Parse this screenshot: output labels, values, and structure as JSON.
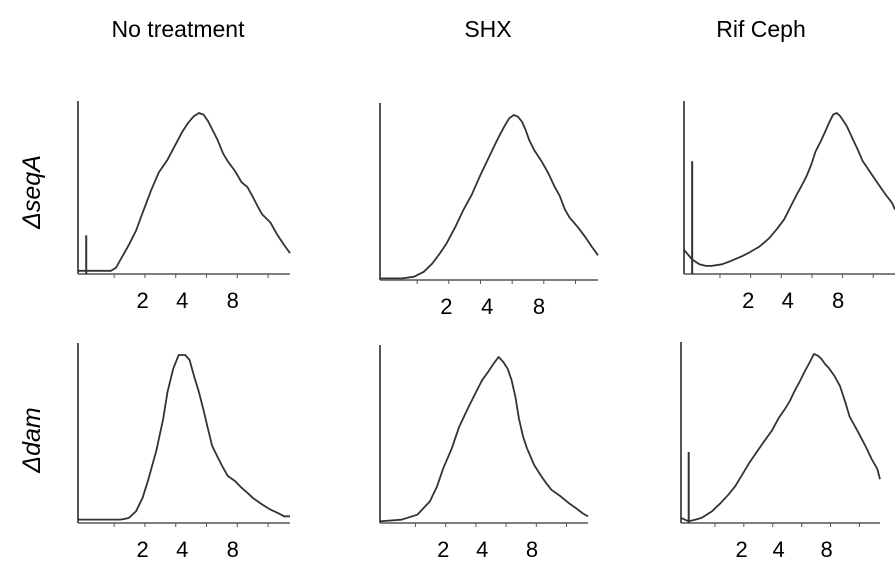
{
  "figure": {
    "columns": [
      "No treatment",
      "SHX",
      "Rif Ceph"
    ],
    "rows": [
      "ΔseqA",
      "Δdam"
    ]
  },
  "chart_data": [
    {
      "type": "area",
      "row": "ΔseqA",
      "column": "No treatment",
      "x_ticks": [
        2,
        4,
        8
      ],
      "xlim": [
        0.7,
        22
      ],
      "ylim": [
        0,
        100
      ],
      "x": [
        0.7,
        1.0,
        1.2,
        1.3,
        1.4,
        1.6,
        1.8,
        2.0,
        2.3,
        2.6,
        3.0,
        3.4,
        3.8,
        4.2,
        4.6,
        5.0,
        5.4,
        5.8,
        6.2,
        6.8,
        7.4,
        8.0,
        9.0,
        10.0,
        11.0,
        12.0,
        13.0,
        14.0,
        16.0,
        18.0,
        20.0,
        22.0
      ],
      "y": [
        2,
        2,
        2,
        4,
        9,
        18,
        27,
        38,
        52,
        63,
        71,
        80,
        88,
        94,
        98,
        100,
        99,
        95,
        90,
        83,
        75,
        70,
        64,
        57,
        54,
        48,
        42,
        37,
        32,
        24,
        18,
        13
      ],
      "spikes": [
        {
          "x": 0.8,
          "y": 24
        }
      ]
    },
    {
      "type": "area",
      "row": "ΔseqA",
      "column": "SHX",
      "x_ticks": [
        2,
        4,
        8
      ],
      "xlim": [
        0.7,
        22
      ],
      "ylim": [
        0,
        100
      ],
      "x": [
        0.7,
        1.0,
        1.2,
        1.4,
        1.6,
        1.8,
        2.0,
        2.3,
        2.6,
        3.0,
        3.4,
        3.8,
        4.2,
        4.6,
        5.0,
        5.4,
        5.8,
        6.2,
        6.6,
        7.0,
        7.4,
        8.0,
        9.0,
        10.0,
        11.0,
        12.0,
        13.0,
        14.0,
        16.0,
        18.0,
        20.0,
        22.0
      ],
      "y": [
        1,
        1,
        2,
        5,
        10,
        16,
        22,
        32,
        42,
        52,
        63,
        72,
        80,
        87,
        93,
        98,
        100,
        99,
        96,
        91,
        85,
        79,
        72,
        65,
        57,
        51,
        43,
        38,
        32,
        26,
        20,
        15
      ],
      "spikes": []
    },
    {
      "type": "area",
      "row": "ΔseqA",
      "column": "Rif Ceph",
      "x_ticks": [
        2,
        4,
        8
      ],
      "xlim": [
        0.7,
        22
      ],
      "ylim": [
        0,
        100
      ],
      "x": [
        0.7,
        0.8,
        0.9,
        1.0,
        1.1,
        1.3,
        1.5,
        1.8,
        2.0,
        2.4,
        2.8,
        3.2,
        3.6,
        4.0,
        4.4,
        4.8,
        5.2,
        5.6,
        6.0,
        6.5,
        7.0,
        7.5,
        8.0,
        8.5,
        9.0,
        10.0,
        11.0,
        12.0,
        13.0,
        15.0,
        17.0,
        19.0,
        21.0,
        22.0
      ],
      "y": [
        15,
        9,
        6,
        5,
        5,
        6,
        8,
        11,
        13,
        17,
        22,
        28,
        34,
        42,
        49,
        55,
        61,
        68,
        76,
        82,
        88,
        94,
        99,
        100,
        98,
        92,
        84,
        77,
        70,
        62,
        55,
        49,
        44,
        40
      ],
      "spikes": [
        {
          "x": 0.8,
          "y": 70
        }
      ]
    },
    {
      "type": "area",
      "row": "Δdam",
      "column": "No treatment",
      "x_ticks": [
        2,
        4,
        8
      ],
      "xlim": [
        0.7,
        22
      ],
      "ylim": [
        0,
        100
      ],
      "x": [
        0.7,
        1.0,
        1.2,
        1.4,
        1.6,
        1.8,
        2.0,
        2.2,
        2.5,
        2.8,
        3.0,
        3.3,
        3.6,
        4.0,
        4.3,
        4.6,
        5.0,
        5.4,
        5.8,
        6.2,
        6.8,
        7.4,
        8.0,
        9.0,
        10.0,
        11.0,
        12.0,
        14.0,
        16.0,
        18.0,
        20.0,
        22.0
      ],
      "y": [
        2,
        2,
        2,
        2,
        3,
        7,
        15,
        26,
        43,
        62,
        78,
        92,
        100,
        100,
        97,
        88,
        78,
        67,
        56,
        46,
        39,
        33,
        28,
        25,
        21,
        18,
        15,
        11,
        8,
        6,
        4,
        4
      ],
      "spikes": []
    },
    {
      "type": "area",
      "row": "Δdam",
      "column": "SHX",
      "x_ticks": [
        2,
        4,
        8
      ],
      "xlim": [
        0.7,
        22
      ],
      "ylim": [
        0,
        100
      ],
      "x": [
        0.7,
        1.0,
        1.3,
        1.6,
        1.8,
        2.0,
        2.3,
        2.6,
        3.0,
        3.4,
        3.8,
        4.2,
        4.6,
        5.0,
        5.4,
        5.8,
        6.2,
        6.6,
        7.0,
        7.5,
        8.0,
        8.5,
        9.0,
        10.0,
        11.0,
        12.0,
        14.0,
        16.0,
        18.0,
        20.0,
        22.0
      ],
      "y": [
        1,
        2,
        5,
        13,
        22,
        33,
        45,
        58,
        69,
        78,
        86,
        91,
        96,
        100,
        97,
        93,
        86,
        76,
        63,
        52,
        45,
        40,
        35,
        29,
        24,
        20,
        16,
        12,
        9,
        6,
        4
      ],
      "spikes": []
    },
    {
      "type": "area",
      "row": "Δdam",
      "column": "Rif Ceph",
      "x_ticks": [
        2,
        4,
        8
      ],
      "xlim": [
        0.7,
        22
      ],
      "ylim": [
        0,
        100
      ],
      "x": [
        0.7,
        0.8,
        0.9,
        1.0,
        1.2,
        1.4,
        1.6,
        1.8,
        2.0,
        2.3,
        2.6,
        3.0,
        3.4,
        3.8,
        4.2,
        4.6,
        5.0,
        5.5,
        6.0,
        6.5,
        7.0,
        7.5,
        8.0,
        8.5,
        9.0,
        10.0,
        11.0,
        12.0,
        13.0,
        15.0,
        17.0,
        19.0,
        21.0,
        22.0
      ],
      "y": [
        3,
        1,
        2,
        3,
        7,
        12,
        17,
        22,
        28,
        36,
        42,
        49,
        55,
        62,
        67,
        72,
        78,
        84,
        90,
        95,
        100,
        99,
        97,
        94,
        92,
        87,
        81,
        72,
        63,
        54,
        46,
        38,
        32,
        26
      ],
      "spikes": [
        {
          "x": 0.8,
          "y": 42
        }
      ]
    }
  ]
}
